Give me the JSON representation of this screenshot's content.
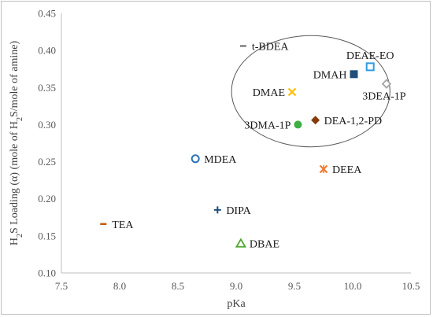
{
  "chart_data": {
    "type": "scatter",
    "title": "",
    "xlabel": "pKa",
    "ylabel": "H2S Loading (α) (mole of H2S/mole of amine)",
    "ylabel_parts": [
      "H",
      "2",
      "S Loading (α) (mole of H",
      "2",
      "S/mole of amine)"
    ],
    "xlim": [
      7.5,
      10.5
    ],
    "ylim": [
      0.1,
      0.45
    ],
    "x_ticks": [
      "7.5",
      "8.0",
      "8.5",
      "9.0",
      "9.5",
      "10.0",
      "10.5"
    ],
    "y_ticks": [
      "0.10",
      "0.15",
      "0.20",
      "0.25",
      "0.30",
      "0.35",
      "0.40",
      "0.45"
    ],
    "grid": false,
    "legend": "none",
    "highlight_ellipse": {
      "center_x": 9.64,
      "center_y": 0.345,
      "radius_x": 0.68,
      "radius_y": 0.075
    },
    "points": [
      {
        "name": "t-BDEA",
        "x": 9.06,
        "y": 0.406,
        "marker": "dash",
        "color": "#7f7f7f",
        "label_side": "right"
      },
      {
        "name": "DEAE-EO",
        "x": 10.15,
        "y": 0.378,
        "marker": "square-open",
        "color": "#2e9be0",
        "label_side": "top"
      },
      {
        "name": "DMAH",
        "x": 10.01,
        "y": 0.368,
        "marker": "square-filled",
        "color": "#1f4e79",
        "label_side": "left"
      },
      {
        "name": "3DEA-1P",
        "x": 10.29,
        "y": 0.355,
        "marker": "diamond-open",
        "color": "#a6a6a6",
        "label_side": "bottom"
      },
      {
        "name": "DMAE",
        "x": 9.48,
        "y": 0.344,
        "marker": "x",
        "color": "#ffc000",
        "label_side": "left"
      },
      {
        "name": "DEA-1,2-PD",
        "x": 9.68,
        "y": 0.306,
        "marker": "diamond-filled",
        "color": "#843c0c",
        "label_side": "right"
      },
      {
        "name": "3DMA-1P",
        "x": 9.53,
        "y": 0.3,
        "marker": "circle-filled",
        "color": "#3cb043",
        "label_side": "left"
      },
      {
        "name": "MDEA",
        "x": 8.65,
        "y": 0.254,
        "marker": "circle-open",
        "color": "#2e75b6",
        "label_side": "right"
      },
      {
        "name": "DEEA",
        "x": 9.75,
        "y": 0.24,
        "marker": "asterisk",
        "color": "#ed7d31",
        "label_side": "right"
      },
      {
        "name": "DIPA",
        "x": 8.84,
        "y": 0.185,
        "marker": "plus",
        "color": "#1f4e79",
        "label_side": "right"
      },
      {
        "name": "TEA",
        "x": 7.86,
        "y": 0.166,
        "marker": "dash",
        "color": "#c55a11",
        "label_side": "right"
      },
      {
        "name": "DBAE",
        "x": 9.04,
        "y": 0.14,
        "marker": "triangle-open",
        "color": "#4ea72e",
        "label_side": "right"
      }
    ]
  }
}
